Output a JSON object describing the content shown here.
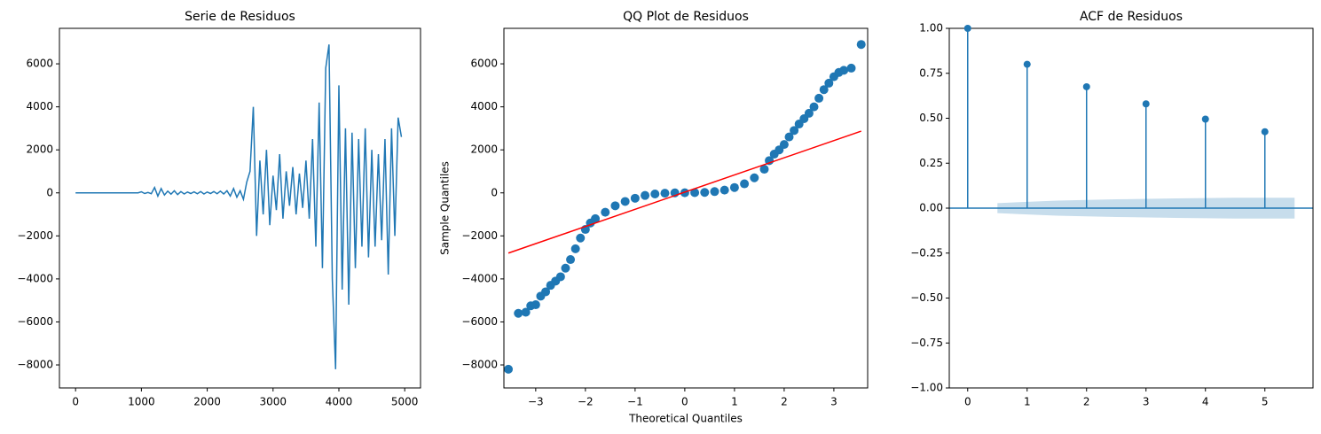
{
  "chart_data": [
    {
      "type": "line",
      "title": "Serie de Residuos",
      "xlim": [
        -245,
        5240
      ],
      "ylim": [
        -9070,
        7650
      ],
      "xticks": [
        0,
        1000,
        2000,
        3000,
        4000,
        5000
      ],
      "yticks": [
        {
          "value": -8000,
          "label": "−8000"
        },
        {
          "value": -6000,
          "label": "−6000"
        },
        {
          "value": -4000,
          "label": "−4000"
        },
        {
          "value": -2000,
          "label": "−2000"
        },
        0,
        2000,
        4000,
        6000
      ],
      "series": [
        {
          "color": "#1f77b4",
          "x": [
            0,
            50,
            100,
            150,
            200,
            250,
            300,
            350,
            400,
            450,
            500,
            550,
            600,
            650,
            700,
            750,
            800,
            850,
            900,
            950,
            1000,
            1050,
            1100,
            1150,
            1200,
            1250,
            1300,
            1350,
            1400,
            1450,
            1500,
            1550,
            1600,
            1650,
            1700,
            1750,
            1800,
            1850,
            1900,
            1950,
            2000,
            2050,
            2100,
            2150,
            2200,
            2250,
            2300,
            2350,
            2400,
            2450,
            2500,
            2550,
            2600,
            2650,
            2700,
            2750,
            2800,
            2850,
            2900,
            2950,
            3000,
            3050,
            3100,
            3150,
            3200,
            3250,
            3300,
            3350,
            3400,
            3450,
            3500,
            3550,
            3600,
            3650,
            3700,
            3750,
            3800,
            3850,
            3900,
            3950,
            4000,
            4050,
            4100,
            4150,
            4200,
            4250,
            4300,
            4350,
            4400,
            4450,
            4500,
            4550,
            4600,
            4650,
            4700,
            4750,
            4800,
            4850,
            4900,
            4950
          ],
          "values": [
            0,
            0,
            0,
            0,
            0,
            0,
            0,
            0,
            0,
            0,
            0,
            0,
            0,
            0,
            0,
            0,
            0,
            0,
            0,
            0,
            50,
            -30,
            20,
            -40,
            250,
            -150,
            200,
            -100,
            80,
            -60,
            100,
            -80,
            60,
            -50,
            40,
            -30,
            50,
            -40,
            60,
            -50,
            40,
            -30,
            60,
            -40,
            80,
            -50,
            100,
            -150,
            200,
            -200,
            100,
            -300,
            500,
            1000,
            4000,
            -2000,
            1500,
            -1000,
            2000,
            -1500,
            800,
            -800,
            1800,
            -1200,
            1000,
            -600,
            1200,
            -1000,
            900,
            -700,
            1500,
            -1200,
            2500,
            -2500,
            4200,
            -3500,
            5800,
            6900,
            -4000,
            -8200,
            5000,
            -4500,
            3000,
            -5200,
            2800,
            -3500,
            2500,
            -2500,
            3000,
            -3000,
            2000,
            -2500,
            1800,
            -2200,
            2500,
            -3800,
            3000,
            -2000,
            3500,
            2600
          ]
        }
      ]
    },
    {
      "type": "scatter",
      "title": "QQ Plot de Residuos",
      "x_label": "Theoretical Quantiles",
      "y_label": "Sample Quantiles",
      "xlim": [
        -3.64,
        3.68
      ],
      "ylim": [
        -9070,
        7650
      ],
      "xticks": [
        {
          "value": -3,
          "label": "−3"
        },
        {
          "value": -2,
          "label": "−2"
        },
        {
          "value": -1,
          "label": "−1"
        },
        0,
        1,
        2,
        3
      ],
      "yticks": [
        {
          "value": -8000,
          "label": "−8000"
        },
        {
          "value": -6000,
          "label": "−6000"
        },
        {
          "value": -4000,
          "label": "−4000"
        },
        {
          "value": -2000,
          "label": "−2000"
        },
        0,
        2000,
        4000,
        6000
      ],
      "series": [
        {
          "color": "#1f77b4",
          "x": [
            -3.55,
            -3.35,
            -3.2,
            -3.1,
            -3.0,
            -2.9,
            -2.8,
            -2.7,
            -2.6,
            -2.5,
            -2.4,
            -2.3,
            -2.2,
            -2.1,
            -2.0,
            -1.9,
            -1.8,
            -1.6,
            -1.4,
            -1.2,
            -1.0,
            -0.8,
            -0.6,
            -0.4,
            -0.2,
            0,
            0.2,
            0.4,
            0.6,
            0.8,
            1.0,
            1.2,
            1.4,
            1.6,
            1.7,
            1.8,
            1.9,
            2.0,
            2.1,
            2.2,
            2.3,
            2.4,
            2.5,
            2.6,
            2.7,
            2.8,
            2.9,
            3.0,
            3.1,
            3.2,
            3.35,
            3.55
          ],
          "values": [
            -8200,
            -5600,
            -5550,
            -5250,
            -5200,
            -4800,
            -4600,
            -4300,
            -4100,
            -3900,
            -3500,
            -3100,
            -2600,
            -2100,
            -1700,
            -1400,
            -1200,
            -900,
            -600,
            -400,
            -250,
            -120,
            -50,
            -15,
            0,
            5,
            10,
            20,
            60,
            130,
            250,
            420,
            700,
            1100,
            1500,
            1800,
            2000,
            2250,
            2600,
            2900,
            3200,
            3450,
            3700,
            4000,
            4400,
            4800,
            5100,
            5400,
            5600,
            5700,
            5800,
            6900
          ]
        }
      ],
      "lines": [
        {
          "color": "#ff0000",
          "x": [
            -3.55,
            3.55
          ],
          "values": [
            -2800,
            2870
          ]
        }
      ]
    },
    {
      "type": "stem",
      "title": "ACF de Residuos",
      "xlim": [
        -0.31,
        5.81
      ],
      "ylim": [
        -1,
        1
      ],
      "xticks": [
        0,
        1,
        2,
        3,
        4,
        5
      ],
      "yticks": [
        {
          "value": -1,
          "label": "−1.00"
        },
        {
          "value": -0.75,
          "label": "−0.75"
        },
        {
          "value": -0.5,
          "label": "−0.50"
        },
        {
          "value": -0.25,
          "label": "−0.25"
        },
        {
          "value": 0,
          "label": "0.00"
        },
        {
          "value": 0.25,
          "label": "0.25"
        },
        {
          "value": 0.5,
          "label": "0.50"
        },
        {
          "value": 0.75,
          "label": "0.75"
        },
        {
          "value": 1,
          "label": "1.00"
        }
      ],
      "series": [
        {
          "color": "#1f77b4",
          "x": [
            0,
            1,
            2,
            3,
            4,
            5
          ],
          "values": [
            1,
            0.8,
            0.675,
            0.58,
            0.495,
            0.425
          ]
        }
      ],
      "confint": {
        "color": "#1f77b4",
        "x": [
          0.5,
          1.5,
          2.5,
          3.5,
          4.5,
          5.5
        ],
        "upper": [
          0.028,
          0.042,
          0.049,
          0.054,
          0.058,
          0.058
        ],
        "lower": [
          -0.028,
          -0.042,
          -0.049,
          -0.054,
          -0.058,
          -0.058
        ]
      }
    }
  ]
}
